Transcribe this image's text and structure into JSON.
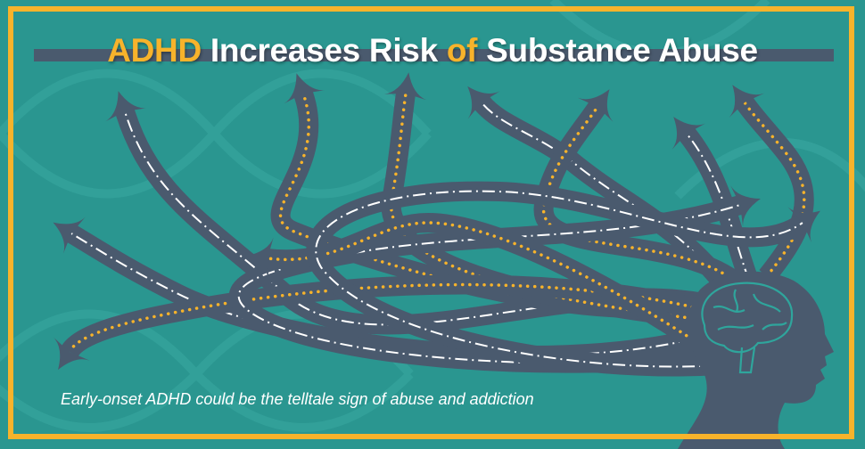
{
  "title": {
    "part1": "ADHD",
    "part2": " Increases Risk ",
    "part3": "of",
    "part4": " Substance Abuse"
  },
  "caption": "Early-onset ADHD could be the telltale sign of abuse and addiction",
  "colors": {
    "background": "#2a9690",
    "frame": "#f7b32b",
    "road": "#4a5a6e",
    "accent": "#f7b32b",
    "brain_outline": "#2fa59c"
  },
  "icons": [
    "dna-helix-icon",
    "road-arrow-icon",
    "head-silhouette-icon",
    "brain-icon"
  ]
}
